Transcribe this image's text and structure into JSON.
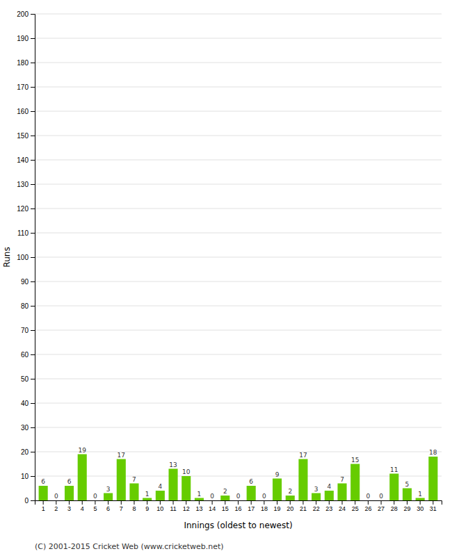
{
  "chart_data": {
    "type": "bar",
    "categories": [
      "1",
      "2",
      "3",
      "4",
      "5",
      "6",
      "7",
      "8",
      "9",
      "10",
      "11",
      "12",
      "13",
      "14",
      "15",
      "16",
      "17",
      "18",
      "19",
      "20",
      "21",
      "22",
      "23",
      "24",
      "25",
      "26",
      "27",
      "28",
      "29",
      "30",
      "31"
    ],
    "values": [
      6,
      0,
      6,
      19,
      0,
      3,
      17,
      7,
      1,
      4,
      13,
      10,
      1,
      0,
      2,
      0,
      6,
      0,
      9,
      2,
      17,
      3,
      4,
      7,
      15,
      0,
      0,
      11,
      5,
      1,
      18
    ],
    "color": "#66cc00",
    "xlabel": "Innings (oldest to newest)",
    "ylabel": "Runs",
    "ylim": [
      0,
      200
    ],
    "yticks": [
      0,
      10,
      20,
      30,
      40,
      50,
      60,
      70,
      80,
      90,
      100,
      110,
      120,
      130,
      140,
      150,
      160,
      170,
      180,
      190,
      200
    ],
    "grid": true,
    "data_labels": true,
    "annotations": [
      "(C) 2001-2015 Cricket Web (www.cricketweb.net)"
    ]
  }
}
